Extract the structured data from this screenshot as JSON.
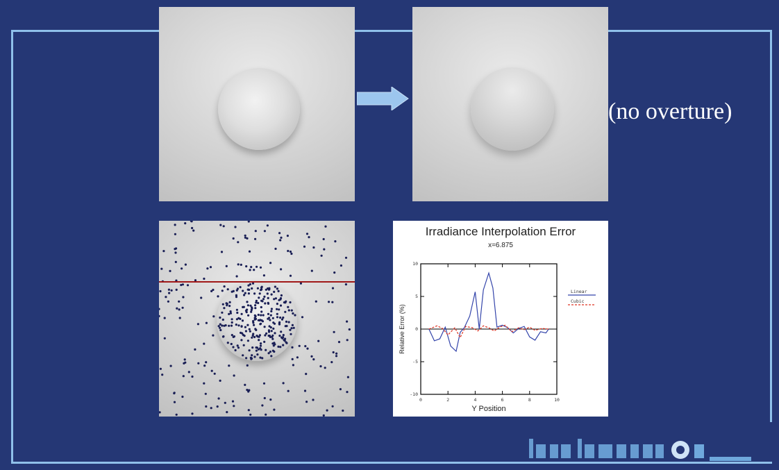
{
  "slide": {
    "caption": "(no overture)",
    "colors": {
      "background": "#253775",
      "frame": "#8fc0ea",
      "arrow": "#9cc6ee"
    }
  },
  "chart_data": {
    "type": "line",
    "title": "Irradiance Interpolation Error",
    "subtitle": "x=6.875",
    "xlabel": "Y Position",
    "ylabel": "Relative Error (%)",
    "xlim": [
      0,
      10
    ],
    "ylim": [
      -10,
      10
    ],
    "xticks": [
      0,
      2,
      4,
      6,
      8,
      10
    ],
    "yticks": [
      -10,
      -5,
      0,
      5,
      10
    ],
    "legend_position": "right",
    "series": [
      {
        "name": "Linear",
        "color": "#3344aa",
        "style": "solid",
        "x": [
          0.6,
          1.0,
          1.4,
          1.8,
          2.2,
          2.6,
          2.9,
          3.2,
          3.6,
          4.0,
          4.3,
          4.6,
          5.0,
          5.3,
          5.6,
          6.0,
          6.4,
          6.8,
          7.2,
          7.6,
          8.0,
          8.4,
          8.8,
          9.2,
          9.4
        ],
        "y": [
          0.0,
          -1.8,
          -1.5,
          0.3,
          -2.6,
          -3.4,
          -0.5,
          0.2,
          2.0,
          5.7,
          0.0,
          6.0,
          8.6,
          6.3,
          0.3,
          0.6,
          0.2,
          -0.6,
          0.1,
          0.4,
          -1.2,
          -1.7,
          -0.4,
          -0.6,
          0.0
        ]
      },
      {
        "name": "Cubic",
        "color": "#dd3322",
        "style": "dashed",
        "x": [
          0.6,
          1.2,
          1.6,
          2.0,
          2.5,
          2.9,
          3.3,
          3.8,
          4.2,
          4.6,
          5.0,
          5.4,
          5.8,
          6.2,
          6.7,
          7.2,
          7.6,
          8.0,
          8.4,
          8.9,
          9.4
        ],
        "y": [
          0.0,
          0.5,
          0.1,
          -0.9,
          0.2,
          -1.3,
          0.4,
          0.2,
          -0.3,
          0.5,
          0.2,
          -0.3,
          0.3,
          0.6,
          -0.4,
          0.2,
          -0.1,
          0.3,
          -0.2,
          0.1,
          0.0
        ]
      }
    ]
  }
}
